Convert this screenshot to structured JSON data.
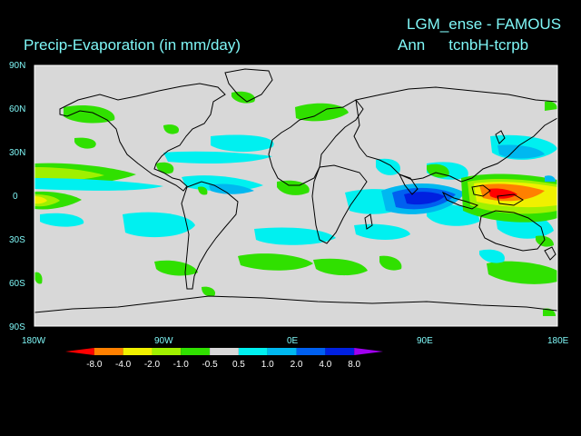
{
  "header": {
    "left_title": "Precip-Evaporation (in mm/day)",
    "right_title": "LGM_ense - FAMOUS",
    "season": "Ann",
    "experiment": "tcnbH-tcrpb"
  },
  "axes": {
    "lat_labels": [
      "90N",
      "60N",
      "30N",
      "0",
      "30S",
      "60S",
      "90S"
    ],
    "lon_labels": [
      "180W",
      "90W",
      "0E",
      "90E",
      "180E"
    ]
  },
  "colorbar": {
    "labels": [
      "-8.0",
      "-4.0",
      "-2.0",
      "-1.0",
      "-0.5",
      "0.5",
      "1.0",
      "2.0",
      "4.0",
      "8.0"
    ],
    "colors": [
      "#ff0000",
      "#ff8000",
      "#f0f000",
      "#a0f000",
      "#30e000",
      "#d8d8d8",
      "#00f0f0",
      "#00b8f0",
      "#0060f0",
      "#0020e0",
      "#a000f0"
    ]
  },
  "colors": {
    "background": "#000000",
    "map_fill": "#d8d8d8",
    "text": "#7ff7f7"
  }
}
